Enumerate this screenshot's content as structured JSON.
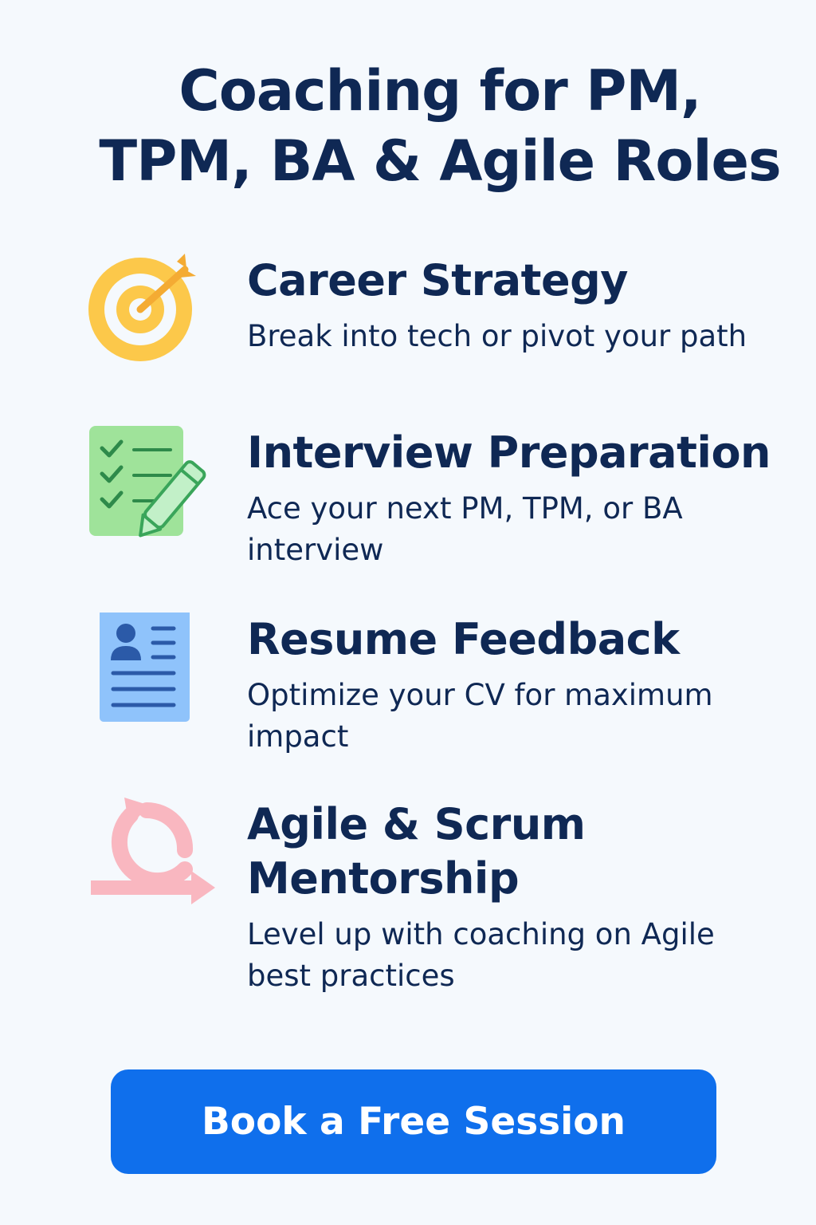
{
  "title": {
    "line1": "Coaching for PM,",
    "line2": "TPM, BA & Agile Roles"
  },
  "features": [
    {
      "icon": "target-icon",
      "title": "Career Strategy",
      "description": "Break into tech or pivot your path"
    },
    {
      "icon": "checklist-icon",
      "title": "Interview Preparation",
      "description": "Ace your next PM, TPM, or BA interview"
    },
    {
      "icon": "resume-icon",
      "title": "Resume Feedback",
      "description": "Optimize your CV for maximum impact"
    },
    {
      "icon": "cycle-arrows-icon",
      "title": "Agile & Scrum Mentorship",
      "description": "Level up with coaching on Agile best practices"
    }
  ],
  "cta": {
    "label": "Book a Free Session"
  },
  "colors": {
    "background": "#f5f9fd",
    "text": "#0f2854",
    "button": "#0f6fec",
    "target": "#fcc84a",
    "checklist": "#9fe39a",
    "resume": "#8fc3fb",
    "cycle": "#f9b7c0"
  }
}
